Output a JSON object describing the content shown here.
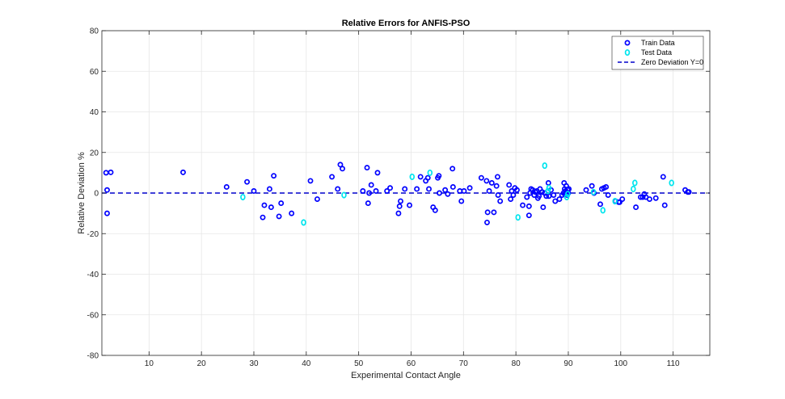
{
  "chart_data": {
    "type": "scatter",
    "title": "Relative Errors for ANFIS-PSO",
    "xlabel": "Experimental Contact Angle",
    "ylabel": "Relative Deviation %",
    "xlim": [
      1,
      117
    ],
    "ylim": [
      -80,
      80
    ],
    "xticks": [
      10,
      20,
      30,
      40,
      50,
      60,
      70,
      80,
      90,
      100,
      110
    ],
    "yticks": [
      -80,
      -60,
      -40,
      -20,
      0,
      20,
      40,
      60,
      80
    ],
    "grid": true,
    "legend_position": "top-right",
    "colors": {
      "train": "#0000ff",
      "test": "#00e5ee",
      "zero_line": "#0000cc",
      "grid": "#e6e6e6",
      "axis": "#262626"
    },
    "series": [
      {
        "name": "Train Data",
        "marker": "circle",
        "points": [
          [
            1.8,
            10
          ],
          [
            2.0,
            1.5
          ],
          [
            2.0,
            -10
          ],
          [
            2.7,
            10.2
          ],
          [
            16.5,
            10.2
          ],
          [
            24.8,
            3
          ],
          [
            28.7,
            5.5
          ],
          [
            30,
            1
          ],
          [
            31.7,
            -12
          ],
          [
            32,
            -6
          ],
          [
            33,
            2
          ],
          [
            33.3,
            -7
          ],
          [
            33.8,
            8.5
          ],
          [
            34.8,
            -11.5
          ],
          [
            35.2,
            -5
          ],
          [
            37.2,
            -10
          ],
          [
            40.8,
            6
          ],
          [
            42.1,
            -3
          ],
          [
            44.9,
            8
          ],
          [
            46,
            2
          ],
          [
            46.5,
            14
          ],
          [
            46.9,
            12
          ],
          [
            50.8,
            1
          ],
          [
            51.6,
            12.5
          ],
          [
            51.8,
            -5
          ],
          [
            52,
            0
          ],
          [
            52.4,
            4
          ],
          [
            53.3,
            1
          ],
          [
            53.6,
            10
          ],
          [
            55.4,
            1
          ],
          [
            56,
            2.5
          ],
          [
            57.6,
            -10
          ],
          [
            57.8,
            -6.5
          ],
          [
            58,
            -4
          ],
          [
            58.8,
            2
          ],
          [
            59.7,
            -6
          ],
          [
            61.1,
            2
          ],
          [
            61.8,
            8
          ],
          [
            62.8,
            6
          ],
          [
            63.2,
            7.5
          ],
          [
            63.4,
            2
          ],
          [
            64.2,
            -7
          ],
          [
            64.6,
            -8.5
          ],
          [
            65.1,
            7.5
          ],
          [
            65.3,
            8.5
          ],
          [
            65.4,
            0
          ],
          [
            66.5,
            1.5
          ],
          [
            67,
            -0.5
          ],
          [
            67.9,
            12
          ],
          [
            68,
            3
          ],
          [
            69.3,
            1
          ],
          [
            69.6,
            -4
          ],
          [
            70.1,
            1
          ],
          [
            71.2,
            2.5
          ],
          [
            73.4,
            7.5
          ],
          [
            74.4,
            6
          ],
          [
            74.5,
            -14.5
          ],
          [
            74.6,
            -9.5
          ],
          [
            74.9,
            1
          ],
          [
            75.4,
            5
          ],
          [
            75.8,
            -9.5
          ],
          [
            76.3,
            3.5
          ],
          [
            76.5,
            8
          ],
          [
            76.6,
            -1
          ],
          [
            77,
            -4
          ],
          [
            78.7,
            4
          ],
          [
            79,
            -3
          ],
          [
            79.2,
            1
          ],
          [
            79.5,
            -1
          ],
          [
            79.8,
            2.5
          ],
          [
            80.2,
            1.5
          ],
          [
            81.3,
            -6
          ],
          [
            82.1,
            -2
          ],
          [
            82.5,
            -11
          ],
          [
            82.5,
            -6.5
          ],
          [
            82.7,
            0
          ],
          [
            82.9,
            2
          ],
          [
            83.2,
            1.5
          ],
          [
            83.5,
            -1
          ],
          [
            83.7,
            0.5
          ],
          [
            84,
            1
          ],
          [
            84.2,
            -2.5
          ],
          [
            84.4,
            -1.5
          ],
          [
            84.6,
            2
          ],
          [
            85,
            0.5
          ],
          [
            85.2,
            -7
          ],
          [
            85.5,
            0
          ],
          [
            85.8,
            -1.5
          ],
          [
            86.2,
            5
          ],
          [
            86.3,
            -1.5
          ],
          [
            86.7,
            1.5
          ],
          [
            87.2,
            -1
          ],
          [
            87.5,
            -4
          ],
          [
            88.3,
            -3
          ],
          [
            88.8,
            -1
          ],
          [
            89.1,
            0
          ],
          [
            89.2,
            5
          ],
          [
            89.3,
            2
          ],
          [
            89.4,
            -0.5
          ],
          [
            89.5,
            1
          ],
          [
            89.6,
            3.5
          ],
          [
            89.7,
            0.5
          ],
          [
            89.8,
            -1
          ],
          [
            89.9,
            1.5
          ],
          [
            90,
            0
          ],
          [
            90.1,
            2
          ],
          [
            93.4,
            1.5
          ],
          [
            94.5,
            3.5
          ],
          [
            94.9,
            0
          ],
          [
            96.1,
            -5.5
          ],
          [
            96.4,
            2
          ],
          [
            96.8,
            2.5
          ],
          [
            97.2,
            3
          ],
          [
            97.6,
            -1
          ],
          [
            99,
            -4
          ],
          [
            99.6,
            -4.5
          ],
          [
            99.8,
            -4.5
          ],
          [
            100.3,
            -3
          ],
          [
            102.9,
            -7
          ],
          [
            103.8,
            -2
          ],
          [
            104.2,
            -2
          ],
          [
            104.5,
            -0.5
          ],
          [
            104.8,
            -2
          ],
          [
            105.5,
            -3
          ],
          [
            106.7,
            -2.5
          ],
          [
            108.1,
            8
          ],
          [
            108.4,
            -6
          ],
          [
            112.3,
            1.5
          ],
          [
            112.8,
            0.5
          ],
          [
            113,
            0.5
          ]
        ]
      },
      {
        "name": "Test Data",
        "marker": "diamond",
        "points": [
          [
            27.9,
            -2
          ],
          [
            39.5,
            -14.5
          ],
          [
            47.2,
            -1
          ],
          [
            60.2,
            8
          ],
          [
            63.6,
            10
          ],
          [
            80.4,
            -12
          ],
          [
            85.5,
            13.5
          ],
          [
            86.1,
            1
          ],
          [
            86.3,
            2.5
          ],
          [
            89.7,
            -2
          ],
          [
            89.9,
            -0.5
          ],
          [
            94.8,
            0.5
          ],
          [
            96.6,
            -8.5
          ],
          [
            98.9,
            -4
          ],
          [
            102.4,
            2
          ],
          [
            102.7,
            5
          ],
          [
            109.7,
            5
          ]
        ]
      },
      {
        "name": "Zero Deviation Y=0",
        "type": "line",
        "style": "dashed",
        "points": [
          [
            1,
            0
          ],
          [
            117,
            0
          ]
        ]
      }
    ]
  }
}
